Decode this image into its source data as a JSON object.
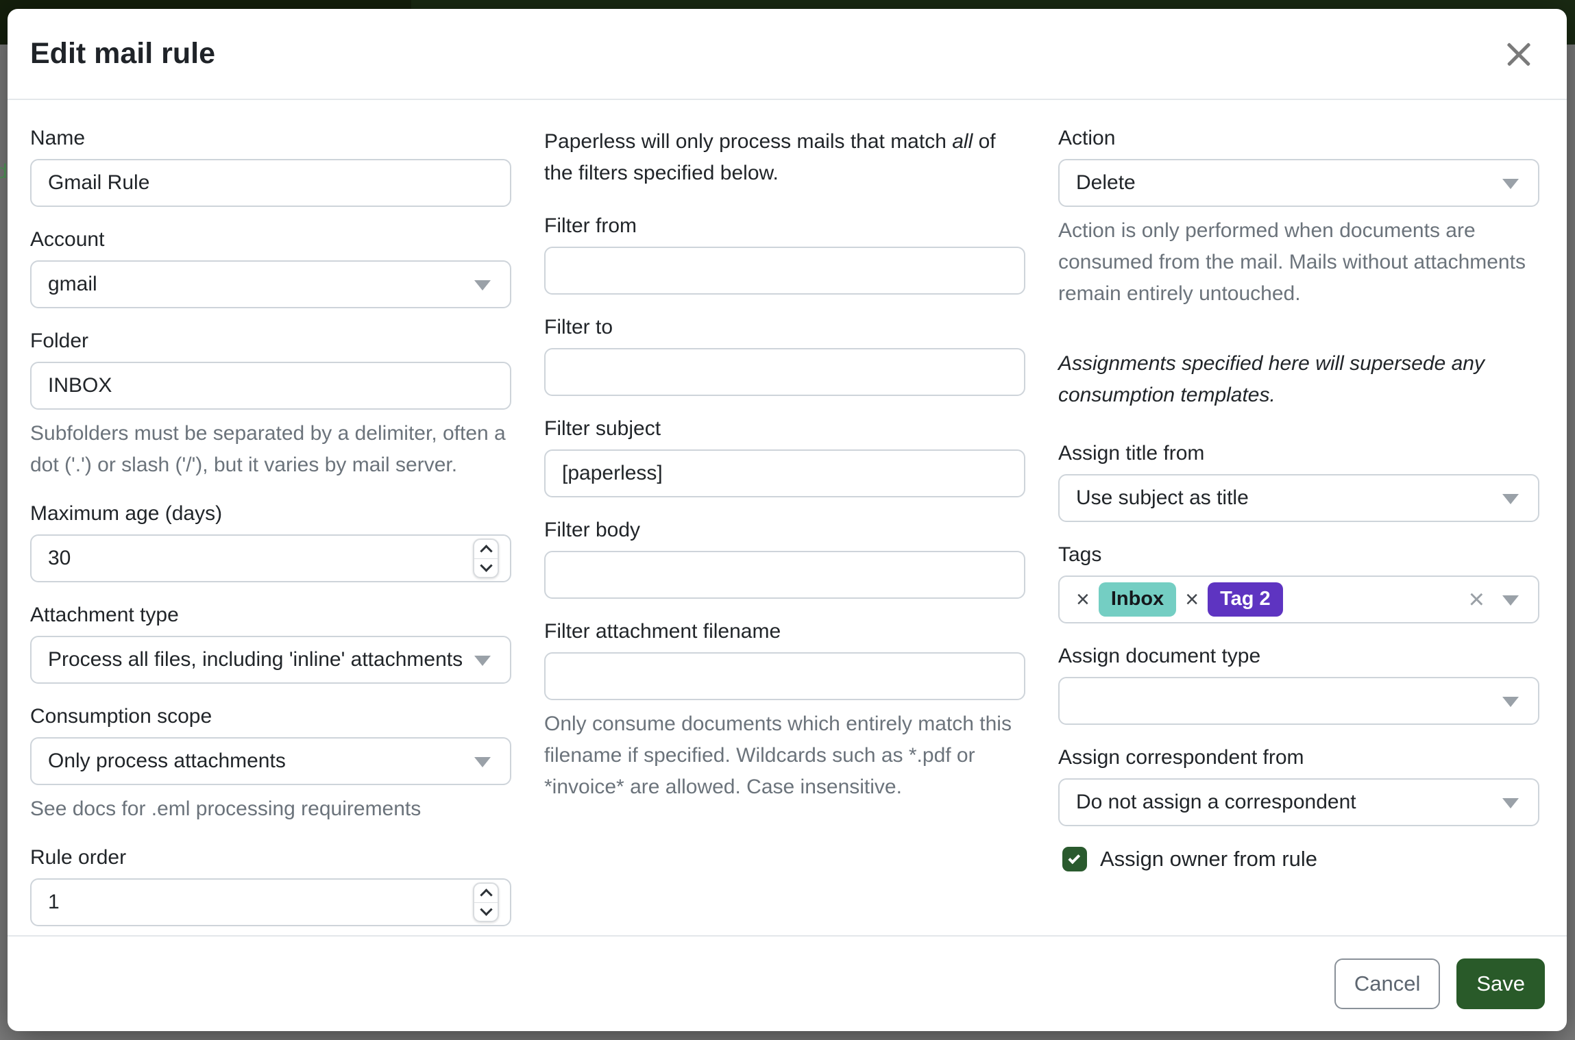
{
  "backdrop": {
    "fragment": "d"
  },
  "colors": {
    "navbar": "#1a2a13",
    "navbar_brand": "#141f0c",
    "accent_green": "#295a29",
    "checkbox_green": "#2a5a2e"
  },
  "icons": {
    "close": "x-mark",
    "dropdown_caret": "chevron-down",
    "stepper_up": "chevron-up",
    "stepper_down": "chevron-down",
    "tag_remove": "×",
    "tags_clear": "×",
    "checkbox_check": "check-mark"
  },
  "modal": {
    "title": "Edit mail rule"
  },
  "left": {
    "name_label": "Name",
    "name_value": "Gmail Rule",
    "account_label": "Account",
    "account_value": "gmail",
    "folder_label": "Folder",
    "folder_value": "INBOX",
    "folder_help": "Subfolders must be separated by a delimiter, often a dot ('.') or slash ('/'), but it varies by mail server.",
    "max_age_label": "Maximum age (days)",
    "max_age_value": "30",
    "attachment_type_label": "Attachment type",
    "attachment_type_value": "Process all files, including 'inline' attachments",
    "consumption_scope_label": "Consumption scope",
    "consumption_scope_value": "Only process attachments",
    "consumption_help": "See docs for .eml processing requirements",
    "rule_order_label": "Rule order",
    "rule_order_value": "1"
  },
  "middle": {
    "intro_pre": "Paperless will only process mails that match ",
    "intro_italic": "all",
    "intro_post": " of the filters specified below.",
    "filter_from_label": "Filter from",
    "filter_from_value": "",
    "filter_to_label": "Filter to",
    "filter_to_value": "",
    "filter_subject_label": "Filter subject",
    "filter_subject_value": "[paperless]",
    "filter_body_label": "Filter body",
    "filter_body_value": "",
    "filter_attachment_label": "Filter attachment filename",
    "filter_attachment_value": "",
    "filter_attachment_help": "Only consume documents which entirely match this filename if specified. Wildcards such as *.pdf or *invoice* are allowed. Case insensitive."
  },
  "right": {
    "action_label": "Action",
    "action_value": "Delete",
    "action_help": "Action is only performed when documents are consumed from the mail. Mails without attachments remain entirely untouched.",
    "assignments_note": "Assignments specified here will supersede any consumption templates.",
    "assign_title_label": "Assign title from",
    "assign_title_value": "Use subject as title",
    "tags_label": "Tags",
    "tags": [
      {
        "label": "Inbox",
        "bg": "#74cec3",
        "color": "#14181c"
      },
      {
        "label": "Tag 2",
        "bg": "#5e34c1",
        "color": "#ffffff"
      }
    ],
    "assign_doctype_label": "Assign document type",
    "assign_doctype_value": "",
    "assign_correspondent_label": "Assign correspondent from",
    "assign_correspondent_value": "Do not assign a correspondent",
    "assign_owner_label": "Assign owner from rule",
    "assign_owner_checked": true
  },
  "footer": {
    "cancel_label": "Cancel",
    "save_label": "Save"
  }
}
